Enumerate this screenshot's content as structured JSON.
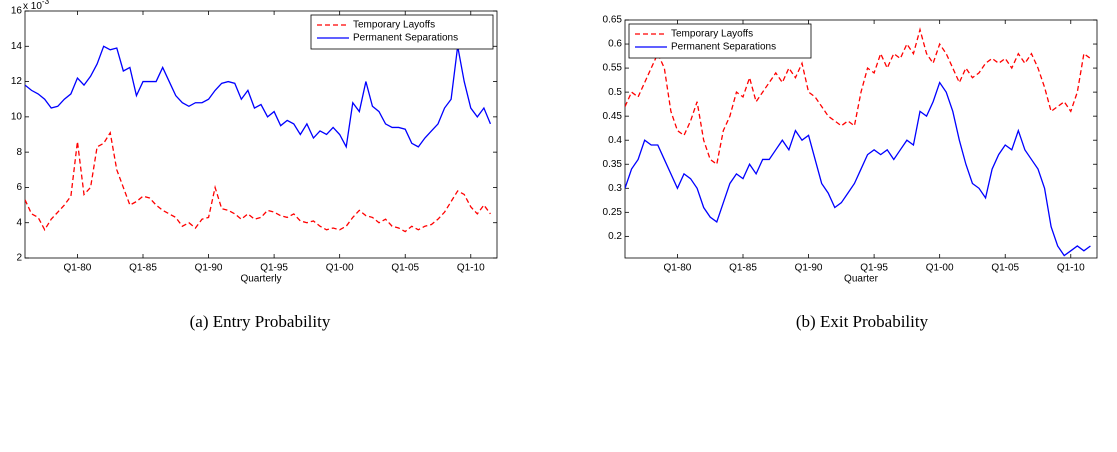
{
  "chart_data": [
    {
      "type": "line",
      "caption": "(a) Entry Probability",
      "x_label": "Quarterly",
      "y_exponent": {
        "base": "x 10",
        "exponent": "-3"
      },
      "xlim": [
        1976,
        2012
      ],
      "ylim": [
        2,
        16
      ],
      "yticks": [
        2,
        4,
        6,
        8,
        10,
        12,
        14,
        16
      ],
      "xticks": [
        {
          "value": 1980,
          "label": "Q1-80"
        },
        {
          "value": 1985,
          "label": "Q1-85"
        },
        {
          "value": 1990,
          "label": "Q1-90"
        },
        {
          "value": 1995,
          "label": "Q1-95"
        },
        {
          "value": 2000,
          "label": "Q1-00"
        },
        {
          "value": 2005,
          "label": "Q1-05"
        },
        {
          "value": 2010,
          "label": "Q1-10"
        }
      ],
      "legend": "upper right",
      "x": [
        1976,
        1976.5,
        1977,
        1977.5,
        1978,
        1978.5,
        1979,
        1979.5,
        1980,
        1980.5,
        1981,
        1981.5,
        1982,
        1982.5,
        1983,
        1983.5,
        1984,
        1984.5,
        1985,
        1985.5,
        1986,
        1986.5,
        1987,
        1987.5,
        1988,
        1988.5,
        1989,
        1989.5,
        1990,
        1990.5,
        1991,
        1991.5,
        1992,
        1992.5,
        1993,
        1993.5,
        1994,
        1994.5,
        1995,
        1995.5,
        1996,
        1996.5,
        1997,
        1997.5,
        1998,
        1998.5,
        1999,
        1999.5,
        2000,
        2000.5,
        2001,
        2001.5,
        2002,
        2002.5,
        2003,
        2003.5,
        2004,
        2004.5,
        2005,
        2005.5,
        2006,
        2006.5,
        2007,
        2007.5,
        2008,
        2008.5,
        2009,
        2009.5,
        2010,
        2010.5,
        2011,
        2011.5
      ],
      "series": [
        {
          "name": "Temporary Layoffs",
          "color": "#ff0000",
          "linestyle": "dashed",
          "values": [
            5.3,
            4.5,
            4.3,
            3.6,
            4.2,
            4.6,
            5.0,
            5.5,
            8.6,
            5.6,
            6.0,
            8.3,
            8.5,
            9.1,
            7.0,
            6.0,
            5.0,
            5.2,
            5.5,
            5.4,
            5.0,
            4.7,
            4.5,
            4.3,
            3.8,
            4.0,
            3.7,
            4.2,
            4.3,
            6.0,
            4.8,
            4.7,
            4.5,
            4.2,
            4.5,
            4.2,
            4.3,
            4.7,
            4.6,
            4.4,
            4.3,
            4.5,
            4.1,
            4.0,
            4.1,
            3.8,
            3.6,
            3.7,
            3.6,
            3.8,
            4.3,
            4.7,
            4.4,
            4.3,
            4.0,
            4.2,
            3.8,
            3.7,
            3.5,
            3.8,
            3.6,
            3.8,
            3.9,
            4.2,
            4.6,
            5.2,
            5.8,
            5.6,
            4.9,
            4.5,
            5.0,
            4.5
          ]
        },
        {
          "name": "Permanent Separations",
          "color": "#0000ff",
          "linestyle": "solid",
          "values": [
            11.8,
            11.5,
            11.3,
            11.0,
            10.5,
            10.6,
            11.0,
            11.3,
            12.2,
            11.8,
            12.3,
            13.0,
            14.0,
            13.8,
            13.9,
            12.6,
            12.8,
            11.2,
            12.0,
            12.0,
            12.0,
            12.8,
            12.0,
            11.2,
            10.8,
            10.6,
            10.8,
            10.8,
            11.0,
            11.5,
            11.9,
            12.0,
            11.9,
            11.0,
            11.5,
            10.5,
            10.7,
            10.0,
            10.3,
            9.5,
            9.8,
            9.6,
            9.0,
            9.6,
            8.8,
            9.2,
            9.0,
            9.4,
            9.0,
            8.3,
            10.8,
            10.3,
            12.0,
            10.6,
            10.3,
            9.6,
            9.4,
            9.4,
            9.3,
            8.5,
            8.3,
            8.8,
            9.2,
            9.6,
            10.5,
            11.0,
            14.0,
            12.0,
            10.5,
            10.0,
            10.5,
            9.6
          ]
        }
      ]
    },
    {
      "type": "line",
      "caption": "(b) Exit Probability",
      "x_label": "Quarter",
      "xlim": [
        1976,
        2012
      ],
      "ylim": [
        0.155,
        0.65
      ],
      "yticks": [
        0.2,
        0.25,
        0.3,
        0.35,
        0.4,
        0.45,
        0.5,
        0.55,
        0.6,
        0.65
      ],
      "xticks": [
        {
          "value": 1980,
          "label": "Q1-80"
        },
        {
          "value": 1985,
          "label": "Q1-85"
        },
        {
          "value": 1990,
          "label": "Q1-90"
        },
        {
          "value": 1995,
          "label": "Q1-95"
        },
        {
          "value": 2000,
          "label": "Q1-00"
        },
        {
          "value": 2005,
          "label": "Q1-05"
        },
        {
          "value": 2010,
          "label": "Q1-10"
        }
      ],
      "legend": "upper left",
      "x": [
        1976,
        1976.5,
        1977,
        1977.5,
        1978,
        1978.5,
        1979,
        1979.5,
        1980,
        1980.5,
        1981,
        1981.5,
        1982,
        1982.5,
        1983,
        1983.5,
        1984,
        1984.5,
        1985,
        1985.5,
        1986,
        1986.5,
        1987,
        1987.5,
        1988,
        1988.5,
        1989,
        1989.5,
        1990,
        1990.5,
        1991,
        1991.5,
        1992,
        1992.5,
        1993,
        1993.5,
        1994,
        1994.5,
        1995,
        1995.5,
        1996,
        1996.5,
        1997,
        1997.5,
        1998,
        1998.5,
        1999,
        1999.5,
        2000,
        2000.5,
        2001,
        2001.5,
        2002,
        2002.5,
        2003,
        2003.5,
        2004,
        2004.5,
        2005,
        2005.5,
        2006,
        2006.5,
        2007,
        2007.5,
        2008,
        2008.5,
        2009,
        2009.5,
        2010,
        2010.5,
        2011,
        2011.5
      ],
      "series": [
        {
          "name": "Temporary Layoffs",
          "color": "#ff0000",
          "linestyle": "dashed",
          "values": [
            0.47,
            0.5,
            0.49,
            0.52,
            0.55,
            0.58,
            0.55,
            0.46,
            0.42,
            0.41,
            0.44,
            0.48,
            0.4,
            0.36,
            0.35,
            0.42,
            0.45,
            0.5,
            0.49,
            0.53,
            0.48,
            0.5,
            0.52,
            0.54,
            0.52,
            0.55,
            0.53,
            0.56,
            0.5,
            0.49,
            0.47,
            0.45,
            0.44,
            0.43,
            0.44,
            0.43,
            0.5,
            0.55,
            0.54,
            0.58,
            0.55,
            0.58,
            0.57,
            0.6,
            0.58,
            0.63,
            0.58,
            0.56,
            0.6,
            0.58,
            0.55,
            0.52,
            0.55,
            0.53,
            0.54,
            0.56,
            0.57,
            0.56,
            0.57,
            0.55,
            0.58,
            0.56,
            0.58,
            0.55,
            0.51,
            0.46,
            0.47,
            0.48,
            0.46,
            0.5,
            0.58,
            0.57
          ]
        },
        {
          "name": "Permanent Separations",
          "color": "#0000ff",
          "linestyle": "solid",
          "values": [
            0.3,
            0.34,
            0.36,
            0.4,
            0.39,
            0.39,
            0.36,
            0.33,
            0.3,
            0.33,
            0.32,
            0.3,
            0.26,
            0.24,
            0.23,
            0.27,
            0.31,
            0.33,
            0.32,
            0.35,
            0.33,
            0.36,
            0.36,
            0.38,
            0.4,
            0.38,
            0.42,
            0.4,
            0.41,
            0.36,
            0.31,
            0.29,
            0.26,
            0.27,
            0.29,
            0.31,
            0.34,
            0.37,
            0.38,
            0.37,
            0.38,
            0.36,
            0.38,
            0.4,
            0.39,
            0.46,
            0.45,
            0.48,
            0.52,
            0.5,
            0.46,
            0.4,
            0.35,
            0.31,
            0.3,
            0.28,
            0.34,
            0.37,
            0.39,
            0.38,
            0.42,
            0.38,
            0.36,
            0.34,
            0.3,
            0.22,
            0.18,
            0.16,
            0.17,
            0.18,
            0.17,
            0.18
          ]
        }
      ]
    }
  ]
}
